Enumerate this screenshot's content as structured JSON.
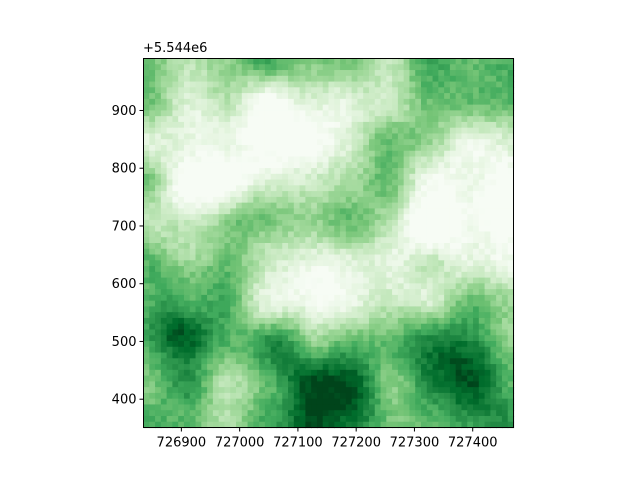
{
  "chart_data": {
    "type": "heatmap",
    "title": "",
    "xlabel": "",
    "ylabel": "",
    "colormap": "Greens",
    "xlim": [
      726835,
      727470
    ],
    "ylim": [
      351,
      990
    ],
    "y_offset_label": "+5.544e6",
    "x_ticks": [
      726900,
      727000,
      727100,
      727200,
      727300,
      727400
    ],
    "x_tick_labels": [
      "726900",
      "727000",
      "727100",
      "727200",
      "727300",
      "727400"
    ],
    "y_ticks": [
      400,
      500,
      600,
      700,
      800,
      900
    ],
    "y_tick_labels": [
      "400",
      "500",
      "600",
      "700",
      "800",
      "900"
    ],
    "grid": false,
    "colorbar": false,
    "raster": {
      "rows": 64,
      "cols": 64,
      "value_range": [
        0,
        1
      ],
      "description_of_pattern": "terrain-like texture with light patches upper-left and right, dark greens lower-left and lower-center"
    }
  }
}
